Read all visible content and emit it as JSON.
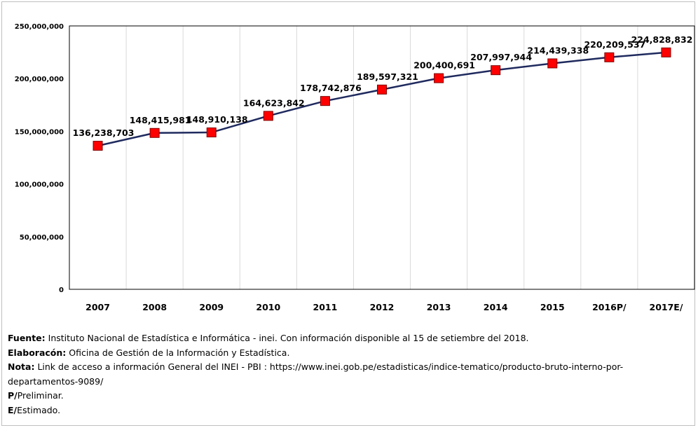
{
  "chart_data": {
    "type": "line",
    "title": "",
    "xlabel": "",
    "ylabel": "",
    "categories": [
      "2007",
      "2008",
      "2009",
      "2010",
      "2011",
      "2012",
      "2013",
      "2014",
      "2015",
      "2016P/",
      "2017E/"
    ],
    "series": [
      {
        "values": [
          136238703,
          148415981,
          148910138,
          164623842,
          178742876,
          189597321,
          200400691,
          207997944,
          214439338,
          220209537,
          224828832
        ],
        "data_labels": [
          "136,238,703",
          "148,415,981",
          "148,910,138",
          "164,623,842",
          "178,742,876",
          "189,597,321",
          "200,400,691",
          "207,997,944",
          "214,439,338",
          "220,209,537",
          "224,828,832"
        ],
        "line_color": "#1f2a5e",
        "marker_color": "#ff0000"
      }
    ],
    "ylim": [
      0,
      250000000
    ],
    "yticks": [
      0,
      50000000,
      100000000,
      150000000,
      200000000,
      250000000
    ],
    "ytick_labels": [
      "0",
      "50,000,000",
      "100,000,000",
      "150,000,000",
      "200,000,000",
      "250,000,000"
    ],
    "grid": {
      "vertical": true,
      "horizontal": false
    },
    "grid_color": "#d9d9d9",
    "legend": "none"
  },
  "notes": {
    "fuente_label": "Fuente:",
    "fuente_text": " Instituto Nacional de Estadística e Informática - inei. Con información disponible al 15 de setiembre del 2018.",
    "elaboracion_label": "Elaboracón:",
    "elaboracion_text": " Oficina de Gestión de la Información y Estadística.",
    "nota_label": "Nota:",
    "nota_text": " Link de acceso a información General del INEI - PBI : https://www.inei.gob.pe/estadisticas/indice-tematico/producto-bruto-interno-por-departamentos-9089/",
    "p_label": "P/",
    "p_text": "Preliminar.",
    "e_label": "E/",
    "e_text": "Estimado."
  }
}
